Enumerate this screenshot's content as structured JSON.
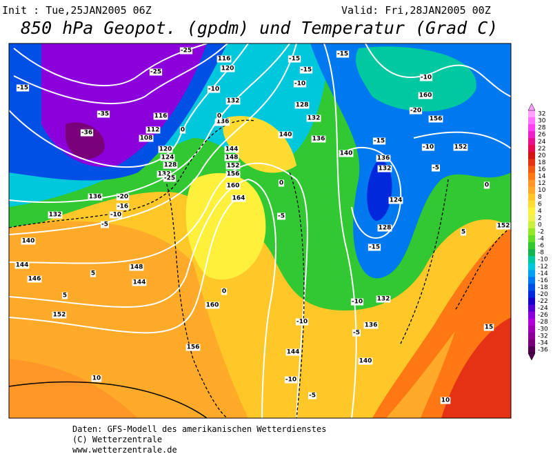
{
  "header": {
    "init": "Init : Tue,25JAN2005 06Z",
    "valid": "Valid: Fri,28JAN2005 00Z",
    "title": "850 hPa Geopot. (gpdm) und Temperatur (Grad C)"
  },
  "map": {
    "contour_labels": [
      "116",
      "120",
      "-25",
      "-25",
      "-15",
      "-35",
      "-36",
      "112",
      "108",
      "116",
      "120",
      "124",
      "128",
      "132",
      "136",
      "-25",
      "-20",
      "-16",
      "-10",
      "-5",
      "132",
      "136",
      "0",
      "-10",
      "132",
      "136",
      "144",
      "148",
      "152",
      "156",
      "160",
      "164",
      "0",
      "-5",
      "0",
      "140",
      "128",
      "-15",
      "-10",
      "-15",
      "132",
      "136",
      "140",
      "-15",
      "-10",
      "160",
      "-10",
      "156",
      "152",
      "-5",
      "136",
      "132",
      "124",
      "128",
      "-15",
      "0",
      "5",
      "152",
      "140",
      "144",
      "146",
      "148",
      "5",
      "144",
      "5",
      "152",
      "160",
      "156",
      "-10",
      "132",
      "-10",
      "136",
      "-5",
      "144",
      "-10",
      "140",
      "-5",
      "15",
      "10",
      "10",
      "0",
      "-20",
      "-15"
    ]
  },
  "colorbar": {
    "levels": [
      32,
      30,
      28,
      26,
      24,
      22,
      20,
      18,
      16,
      14,
      12,
      10,
      8,
      6,
      4,
      2,
      0,
      -2,
      -4,
      -6,
      -8,
      -10,
      -12,
      -14,
      -16,
      -18,
      -20,
      -22,
      -24,
      -26,
      -28,
      -30,
      -32,
      -34,
      -36
    ],
    "colors": [
      "#ffa0ff",
      "#ff70ff",
      "#ff40f0",
      "#f020c8",
      "#e8108c",
      "#e80a50",
      "#d21414",
      "#e63214",
      "#f05a14",
      "#ff7814",
      "#ff9628",
      "#ffaa28",
      "#ffc828",
      "#ffdc32",
      "#fff03c",
      "#f0f050",
      "#c8f03c",
      "#96e628",
      "#64dc28",
      "#32c832",
      "#14b450",
      "#00c8a0",
      "#00c8dc",
      "#00a0f0",
      "#0078f0",
      "#0050e6",
      "#0028dc",
      "#1400c8",
      "#5000d2",
      "#8c00dc",
      "#b400dc",
      "#a000b4",
      "#8c0096",
      "#780078",
      "#500050"
    ]
  },
  "footer": {
    "line1": "Daten: GFS-Modell des amerikanischen Wetterdienstes",
    "line2": "(C) Wetterzentrale",
    "line3": "www.wetterzentrale.de"
  }
}
